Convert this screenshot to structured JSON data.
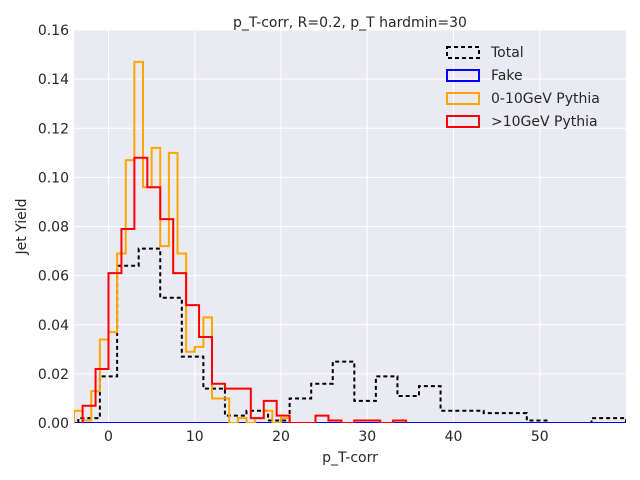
{
  "chart_data": {
    "type": "histogram-step",
    "title": "p_T-corr, R=0.2, p_T hardmin=30",
    "xlabel": "p_T-corr",
    "ylabel": "Jet Yield",
    "xlim": [
      -4,
      60
    ],
    "ylim": [
      0,
      0.16
    ],
    "xticks": [
      0,
      10,
      20,
      30,
      40,
      50
    ],
    "yticks": [
      0.0,
      0.02,
      0.04,
      0.06,
      0.08,
      0.1,
      0.12,
      0.14,
      0.16
    ],
    "xtick_labels": [
      "0",
      "10",
      "20",
      "30",
      "40",
      "50"
    ],
    "ytick_labels": [
      "0.00",
      "0.02",
      "0.04",
      "0.06",
      "0.08",
      "0.10",
      "0.12",
      "0.14",
      "0.16"
    ],
    "grid": true,
    "legend": "top-right",
    "background_color": "#eaeaf2",
    "series": [
      {
        "name": "Total",
        "color": "#000000",
        "dashed": true,
        "edges": [
          -3.5,
          -1,
          1,
          3.5,
          6,
          8.5,
          11,
          13.5,
          16,
          18.5,
          21,
          23.5,
          26,
          28.5,
          31,
          33.5,
          36,
          38.5,
          41,
          43.5,
          46,
          48.5,
          51,
          53.5,
          56,
          58.5,
          60
        ],
        "values": [
          0.002,
          0.019,
          0.064,
          0.071,
          0.051,
          0.027,
          0.014,
          0.003,
          0.005,
          0.001,
          0.01,
          0.016,
          0.025,
          0.009,
          0.019,
          0.011,
          0.015,
          0.005,
          0.005,
          0.004,
          0.004,
          0.001,
          0.0,
          0.0,
          0.002,
          0.002
        ]
      },
      {
        "name": "Fake",
        "color": "#0000ff",
        "dashed": false,
        "edges": [
          -4,
          60
        ],
        "values": [
          0.0
        ]
      },
      {
        "name": "0-10GeV Pythia",
        "color": "#ffa500",
        "dashed": false,
        "edges": [
          -4,
          -3,
          -2,
          -1,
          0,
          1,
          2,
          3,
          4,
          5,
          6,
          7,
          8,
          9,
          10,
          11,
          12,
          13,
          14,
          15,
          16,
          17,
          18,
          19,
          20,
          21
        ],
        "values": [
          0.005,
          0.001,
          0.013,
          0.034,
          0.037,
          0.069,
          0.107,
          0.147,
          0.096,
          0.112,
          0.072,
          0.11,
          0.069,
          0.029,
          0.031,
          0.043,
          0.01,
          0.01,
          0.0,
          0.002,
          0.0,
          0.002,
          0.005,
          0.0,
          0.002
        ]
      },
      {
        "name": ">10GeV Pythia",
        "color": "#ff0000",
        "dashed": false,
        "edges": [
          -3,
          -1.5,
          0,
          1.5,
          3,
          4.5,
          6,
          7.5,
          9,
          10.5,
          12,
          13.5,
          15,
          16.5,
          18,
          19.5,
          21,
          22.5,
          24,
          25.5,
          27,
          28.5,
          30,
          31.5,
          33,
          34.5
        ],
        "values": [
          0.007,
          0.022,
          0.061,
          0.079,
          0.108,
          0.096,
          0.083,
          0.061,
          0.048,
          0.035,
          0.016,
          0.014,
          0.014,
          0.002,
          0.009,
          0.003,
          0.0,
          0.0,
          0.003,
          0.001,
          0.0,
          0.001,
          0.001,
          0.0,
          0.001
        ]
      }
    ]
  }
}
